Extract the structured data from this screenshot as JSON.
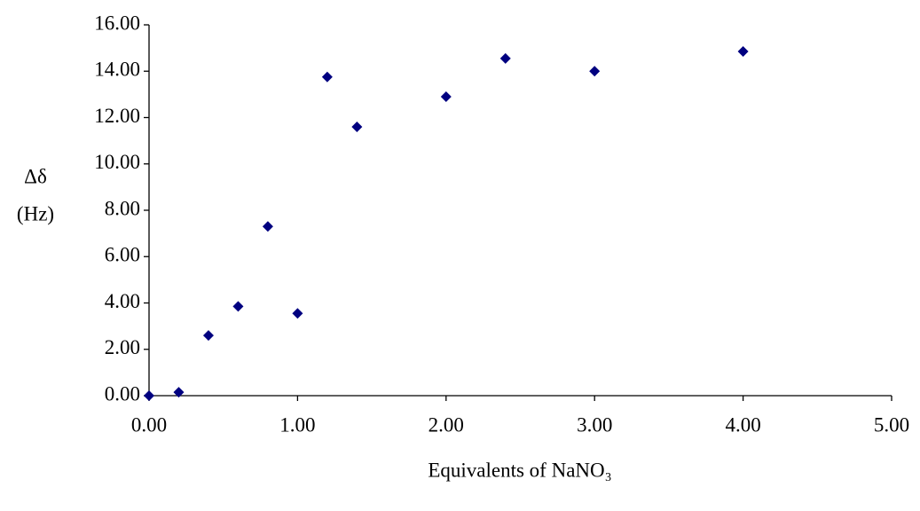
{
  "chart_data": {
    "type": "scatter",
    "x_label": "Equivalents of NaNO₃",
    "y_label": [
      "Δδ",
      "(Hz)"
    ],
    "x": [
      0,
      0.2,
      0.4,
      0.6,
      0.8,
      1.0,
      1.2,
      1.4,
      2.0,
      2.4,
      3.0,
      4.0
    ],
    "series": [
      {
        "color": "#000080",
        "values": [
          0,
          0.15,
          2.6,
          3.85,
          7.3,
          3.55,
          13.75,
          11.6,
          12.9,
          14.55,
          14.0,
          14.85
        ]
      }
    ],
    "xlim": [
      0,
      5
    ],
    "xticks": [
      {
        "value": 0,
        "label": "0.00"
      },
      {
        "value": 1,
        "label": "1.00"
      },
      {
        "value": 2,
        "label": "2.00"
      },
      {
        "value": 3,
        "label": "3.00"
      },
      {
        "value": 4,
        "label": "4.00"
      },
      {
        "value": 5,
        "label": "5.00"
      }
    ],
    "ylim": [
      0,
      16
    ],
    "yticks": [
      {
        "value": 0,
        "label": "0.00"
      },
      {
        "value": 2,
        "label": "2.00"
      },
      {
        "value": 4,
        "label": "4.00"
      },
      {
        "value": 6,
        "label": "6.00"
      },
      {
        "value": 8,
        "label": "8.00"
      },
      {
        "value": 10,
        "label": "10.00"
      },
      {
        "value": 12,
        "label": "12.00"
      },
      {
        "value": 14,
        "label": "14.00"
      },
      {
        "value": 16,
        "label": "16.00"
      }
    ],
    "grid": false
  }
}
